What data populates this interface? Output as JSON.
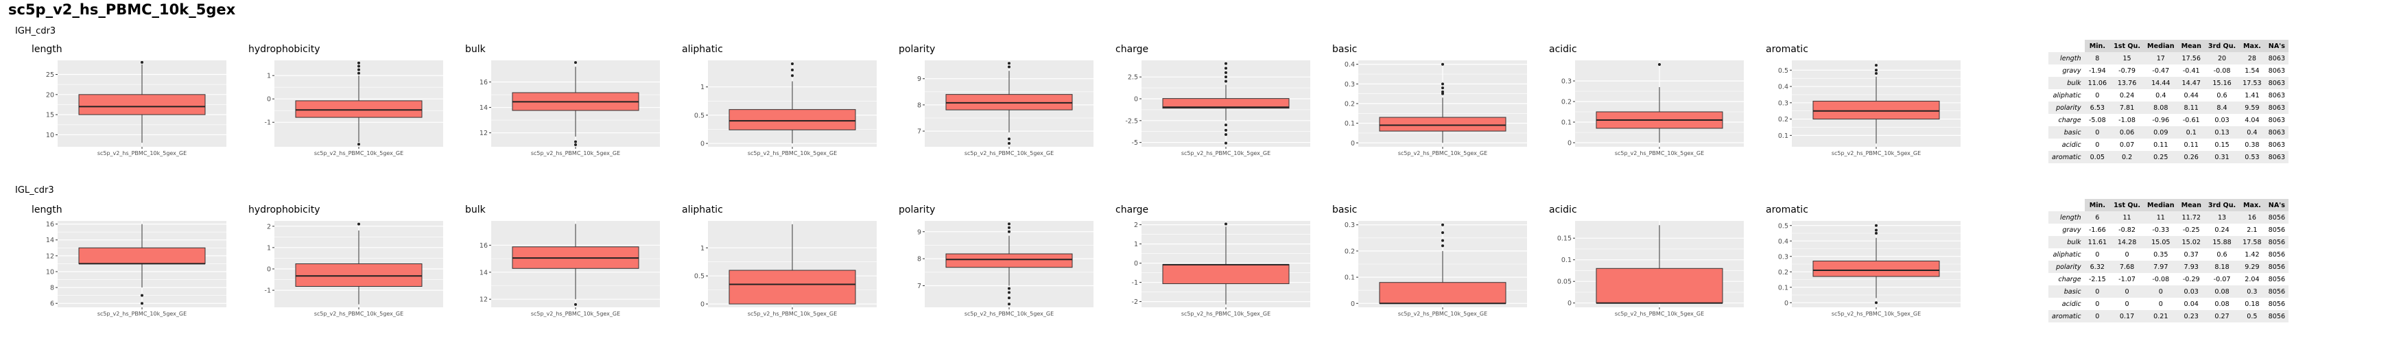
{
  "page": {
    "title": "sc5p_v2_hs_PBMC_10k_5gex"
  },
  "stats_columns": [
    "",
    "Min.",
    "1st Qu.",
    "Median",
    "Mean",
    "3rd Qu.",
    "Max.",
    "NA's"
  ],
  "sections": [
    {
      "label": "IGH_cdr3",
      "stats_rows": [
        [
          "length",
          "8",
          "15",
          "17",
          "17.56",
          "20",
          "28",
          "8063"
        ],
        [
          "gravy",
          "-1.94",
          "-0.79",
          "-0.47",
          "-0.41",
          "-0.08",
          "1.54",
          "8063"
        ],
        [
          "bulk",
          "11.06",
          "13.76",
          "14.44",
          "14.47",
          "15.16",
          "17.53",
          "8063"
        ],
        [
          "aliphatic",
          "0",
          "0.24",
          "0.4",
          "0.44",
          "0.6",
          "1.41",
          "8063"
        ],
        [
          "polarity",
          "6.53",
          "7.81",
          "8.08",
          "8.11",
          "8.4",
          "9.59",
          "8063"
        ],
        [
          "charge",
          "-5.08",
          "-1.08",
          "-0.96",
          "-0.61",
          "0.03",
          "4.04",
          "8063"
        ],
        [
          "basic",
          "0",
          "0.06",
          "0.09",
          "0.1",
          "0.13",
          "0.4",
          "8063"
        ],
        [
          "acidic",
          "0",
          "0.07",
          "0.11",
          "0.11",
          "0.15",
          "0.38",
          "8063"
        ],
        [
          "aromatic",
          "0.05",
          "0.2",
          "0.25",
          "0.26",
          "0.31",
          "0.53",
          "8063"
        ]
      ]
    },
    {
      "label": "IGL_cdr3",
      "stats_rows": [
        [
          "length",
          "6",
          "11",
          "11",
          "11.72",
          "13",
          "16",
          "8056"
        ],
        [
          "gravy",
          "-1.66",
          "-0.82",
          "-0.33",
          "-0.25",
          "0.24",
          "2.1",
          "8056"
        ],
        [
          "bulk",
          "11.61",
          "14.28",
          "15.05",
          "15.02",
          "15.88",
          "17.58",
          "8056"
        ],
        [
          "aliphatic",
          "0",
          "0",
          "0.35",
          "0.37",
          "0.6",
          "1.42",
          "8056"
        ],
        [
          "polarity",
          "6.32",
          "7.68",
          "7.97",
          "7.93",
          "8.18",
          "9.29",
          "8056"
        ],
        [
          "charge",
          "-2.15",
          "-1.07",
          "-0.08",
          "-0.29",
          "-0.07",
          "2.04",
          "8056"
        ],
        [
          "basic",
          "0",
          "0",
          "0",
          "0.03",
          "0.08",
          "0.3",
          "8056"
        ],
        [
          "acidic",
          "0",
          "0",
          "0",
          "0.04",
          "0.08",
          "0.18",
          "8056"
        ],
        [
          "aromatic",
          "0",
          "0.17",
          "0.21",
          "0.23",
          "0.27",
          "0.5",
          "8056"
        ]
      ]
    }
  ],
  "chart_data": [
    {
      "type": "box",
      "section": "IGH_cdr3",
      "title": "length",
      "xlabel": "sc5p_v2_hs_PBMC_10k_5gex_GE",
      "yticks": [
        10,
        15,
        20,
        25
      ],
      "ylim": [
        7,
        28.5
      ],
      "box": {
        "min": 8,
        "q1": 15,
        "median": 17,
        "q3": 20,
        "max": 28
      },
      "whisker": [
        8,
        27.5
      ],
      "outliers": [
        28
      ]
    },
    {
      "type": "box",
      "section": "IGH_cdr3",
      "title": "hydrophobicity",
      "xlabel": "sc5p_v2_hs_PBMC_10k_5gex_GE",
      "yticks": [
        -1,
        0,
        1
      ],
      "ylim": [
        -2.05,
        1.65
      ],
      "box": {
        "min": -1.94,
        "q1": -0.79,
        "median": -0.47,
        "q3": -0.08,
        "max": 1.54
      },
      "whisker": [
        -1.85,
        1.0
      ],
      "outliers": [
        1.54,
        1.4,
        1.25,
        1.1,
        -1.94
      ]
    },
    {
      "type": "box",
      "section": "IGH_cdr3",
      "title": "bulk",
      "xlabel": "sc5p_v2_hs_PBMC_10k_5gex_GE",
      "yticks": [
        12,
        14,
        16
      ],
      "ylim": [
        10.9,
        17.7
      ],
      "box": {
        "min": 11.06,
        "q1": 13.76,
        "median": 14.44,
        "q3": 15.16,
        "max": 17.53
      },
      "whisker": [
        11.7,
        17.2
      ],
      "outliers": [
        17.53,
        11.06,
        11.3
      ]
    },
    {
      "type": "box",
      "section": "IGH_cdr3",
      "title": "aliphatic",
      "xlabel": "sc5p_v2_hs_PBMC_10k_5gex_GE",
      "yticks": [
        0.0,
        0.5,
        1.0
      ],
      "ylim": [
        -0.06,
        1.47
      ],
      "box": {
        "min": 0,
        "q1": 0.24,
        "median": 0.4,
        "q3": 0.6,
        "max": 1.41
      },
      "whisker": [
        0,
        1.1
      ],
      "outliers": [
        1.41,
        1.3,
        1.2
      ]
    },
    {
      "type": "box",
      "section": "IGH_cdr3",
      "title": "polarity",
      "xlabel": "sc5p_v2_hs_PBMC_10k_5gex_GE",
      "yticks": [
        7,
        8,
        9
      ],
      "ylim": [
        6.4,
        9.7
      ],
      "box": {
        "min": 6.53,
        "q1": 7.81,
        "median": 8.08,
        "q3": 8.4,
        "max": 9.59
      },
      "whisker": [
        6.95,
        9.3
      ],
      "outliers": [
        9.59,
        9.45,
        6.7,
        6.53
      ]
    },
    {
      "type": "box",
      "section": "IGH_cdr3",
      "title": "charge",
      "xlabel": "sc5p_v2_hs_PBMC_10k_5gex_GE",
      "yticks": [
        -5.0,
        -2.5,
        0.0,
        2.5
      ],
      "ylim": [
        -5.5,
        4.4
      ],
      "box": {
        "min": -5.08,
        "q1": -1.08,
        "median": -0.96,
        "q3": 0.03,
        "max": 4.04
      },
      "whisker": [
        -2.5,
        1.6
      ],
      "outliers": [
        4.04,
        3.5,
        3.0,
        2.5,
        2.0,
        -3.0,
        -3.6,
        -4.1,
        -5.08
      ]
    },
    {
      "type": "box",
      "section": "IGH_cdr3",
      "title": "basic",
      "xlabel": "sc5p_v2_hs_PBMC_10k_5gex_GE",
      "yticks": [
        0.0,
        0.1,
        0.2,
        0.3,
        0.4
      ],
      "ylim": [
        -0.02,
        0.42
      ],
      "box": {
        "min": 0,
        "q1": 0.06,
        "median": 0.09,
        "q3": 0.13,
        "max": 0.4
      },
      "whisker": [
        0,
        0.23
      ],
      "outliers": [
        0.4,
        0.3,
        0.28,
        0.26,
        0.25
      ]
    },
    {
      "type": "box",
      "section": "IGH_cdr3",
      "title": "acidic",
      "xlabel": "sc5p_v2_hs_PBMC_10k_5gex_GE",
      "yticks": [
        0.0,
        0.1,
        0.2,
        0.3
      ],
      "ylim": [
        -0.02,
        0.4
      ],
      "box": {
        "min": 0,
        "q1": 0.07,
        "median": 0.11,
        "q3": 0.15,
        "max": 0.38
      },
      "whisker": [
        0,
        0.27
      ],
      "outliers": [
        0.38
      ]
    },
    {
      "type": "box",
      "section": "IGH_cdr3",
      "title": "aromatic",
      "xlabel": "sc5p_v2_hs_PBMC_10k_5gex_GE",
      "yticks": [
        0.1,
        0.2,
        0.3,
        0.4,
        0.5
      ],
      "ylim": [
        0.03,
        0.56
      ],
      "box": {
        "min": 0.05,
        "q1": 0.2,
        "median": 0.25,
        "q3": 0.31,
        "max": 0.53
      },
      "whisker": [
        0.05,
        0.46
      ],
      "outliers": [
        0.53,
        0.5,
        0.48
      ]
    },
    {
      "type": "box",
      "section": "IGL_cdr3",
      "title": "length",
      "xlabel": "sc5p_v2_hs_PBMC_10k_5gex_GE",
      "yticks": [
        6,
        8,
        10,
        12,
        14,
        16
      ],
      "ylim": [
        5.5,
        16.4
      ],
      "box": {
        "min": 6,
        "q1": 11,
        "median": 11,
        "q3": 13,
        "max": 16
      },
      "whisker": [
        8,
        16
      ],
      "outliers": [
        7,
        6
      ]
    },
    {
      "type": "box",
      "section": "IGL_cdr3",
      "title": "hydrophobicity",
      "xlabel": "sc5p_v2_hs_PBMC_10k_5gex_GE",
      "yticks": [
        -1,
        0,
        1,
        2
      ],
      "ylim": [
        -1.8,
        2.25
      ],
      "box": {
        "min": -1.66,
        "q1": -0.82,
        "median": -0.33,
        "q3": 0.24,
        "max": 2.1
      },
      "whisker": [
        -1.66,
        1.8
      ],
      "outliers": [
        2.1
      ]
    },
    {
      "type": "box",
      "section": "IGL_cdr3",
      "title": "bulk",
      "xlabel": "sc5p_v2_hs_PBMC_10k_5gex_GE",
      "yticks": [
        12,
        14,
        16
      ],
      "ylim": [
        11.4,
        17.8
      ],
      "box": {
        "min": 11.61,
        "q1": 14.28,
        "median": 15.05,
        "q3": 15.88,
        "max": 17.58
      },
      "whisker": [
        12.0,
        17.58
      ],
      "outliers": [
        11.61
      ]
    },
    {
      "type": "box",
      "section": "IGL_cdr3",
      "title": "aliphatic",
      "xlabel": "sc5p_v2_hs_PBMC_10k_5gex_GE",
      "yticks": [
        0.0,
        0.5,
        1.0
      ],
      "ylim": [
        -0.06,
        1.48
      ],
      "box": {
        "min": 0,
        "q1": 0,
        "median": 0.35,
        "q3": 0.6,
        "max": 1.42
      },
      "whisker": [
        0,
        1.42
      ],
      "outliers": []
    },
    {
      "type": "box",
      "section": "IGL_cdr3",
      "title": "polarity",
      "xlabel": "sc5p_v2_hs_PBMC_10k_5gex_GE",
      "yticks": [
        7,
        8,
        9
      ],
      "ylim": [
        6.2,
        9.4
      ],
      "box": {
        "min": 6.32,
        "q1": 7.68,
        "median": 7.97,
        "q3": 8.18,
        "max": 9.29
      },
      "whisker": [
        7.0,
        8.85
      ],
      "outliers": [
        9.29,
        9.15,
        9.0,
        6.9,
        6.75,
        6.55,
        6.32
      ]
    },
    {
      "type": "box",
      "section": "IGL_cdr3",
      "title": "charge",
      "xlabel": "sc5p_v2_hs_PBMC_10k_5gex_GE",
      "yticks": [
        -2,
        -1,
        0,
        1,
        2
      ],
      "ylim": [
        -2.3,
        2.2
      ],
      "box": {
        "min": -2.15,
        "q1": -1.07,
        "median": -0.08,
        "q3": -0.07,
        "max": 2.04
      },
      "whisker": [
        -2.15,
        1.9
      ],
      "outliers": [
        2.04
      ]
    },
    {
      "type": "box",
      "section": "IGL_cdr3",
      "title": "basic",
      "xlabel": "sc5p_v2_hs_PBMC_10k_5gex_GE",
      "yticks": [
        0.0,
        0.1,
        0.2,
        0.3
      ],
      "ylim": [
        -0.015,
        0.315
      ],
      "box": {
        "min": 0,
        "q1": 0,
        "median": 0,
        "q3": 0.08,
        "max": 0.3
      },
      "whisker": [
        0,
        0.2
      ],
      "outliers": [
        0.3,
        0.27,
        0.24,
        0.22
      ]
    },
    {
      "type": "box",
      "section": "IGL_cdr3",
      "title": "acidic",
      "xlabel": "sc5p_v2_hs_PBMC_10k_5gex_GE",
      "yticks": [
        0.0,
        0.05,
        0.1,
        0.15
      ],
      "ylim": [
        -0.01,
        0.19
      ],
      "box": {
        "min": 0,
        "q1": 0,
        "median": 0,
        "q3": 0.08,
        "max": 0.18
      },
      "whisker": [
        0,
        0.18
      ],
      "outliers": []
    },
    {
      "type": "box",
      "section": "IGL_cdr3",
      "title": "aromatic",
      "xlabel": "sc5p_v2_hs_PBMC_10k_5gex_GE",
      "yticks": [
        0.0,
        0.1,
        0.2,
        0.3,
        0.4,
        0.5
      ],
      "ylim": [
        -0.03,
        0.53
      ],
      "box": {
        "min": 0,
        "q1": 0.17,
        "median": 0.21,
        "q3": 0.27,
        "max": 0.5
      },
      "whisker": [
        0.03,
        0.42
      ],
      "outliers": [
        0.5,
        0.47,
        0.45,
        0
      ]
    }
  ],
  "colors": {
    "panel_bg": "#ebebeb",
    "grid": "#ffffff",
    "box_fill": "#f8766d",
    "box_stroke": "#333333",
    "tick_text": "#4d4d4d",
    "outlier": "#222222"
  }
}
